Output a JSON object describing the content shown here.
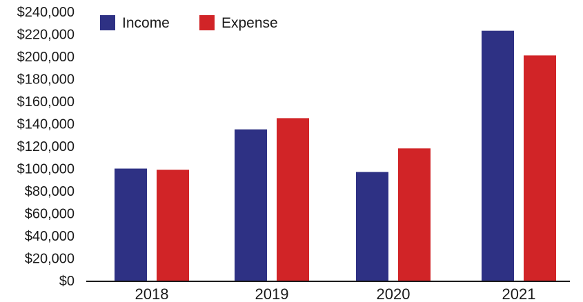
{
  "chart_data": {
    "type": "bar",
    "title": "",
    "xlabel": "",
    "ylabel": "",
    "categories": [
      "2018",
      "2019",
      "2020",
      "2021"
    ],
    "series": [
      {
        "name": "Income",
        "color": "#2e3184",
        "values": [
          100000,
          135000,
          97000,
          223000
        ]
      },
      {
        "name": "Expense",
        "color": "#d12427",
        "values": [
          99000,
          145000,
          118000,
          201000
        ]
      }
    ],
    "ylim": [
      0,
      240000
    ],
    "y_ticks": [
      0,
      20000,
      40000,
      60000,
      80000,
      100000,
      120000,
      140000,
      160000,
      180000,
      200000,
      220000,
      240000
    ],
    "y_tick_labels": [
      "$0",
      "$20,000",
      "$40,000",
      "$60,000",
      "$80,000",
      "$100,000",
      "$120,000",
      "$140,000",
      "$160,000",
      "$180,000",
      "$200,000",
      "$220,000",
      "$240,000"
    ],
    "grid": false,
    "legend_position": "top-left"
  }
}
